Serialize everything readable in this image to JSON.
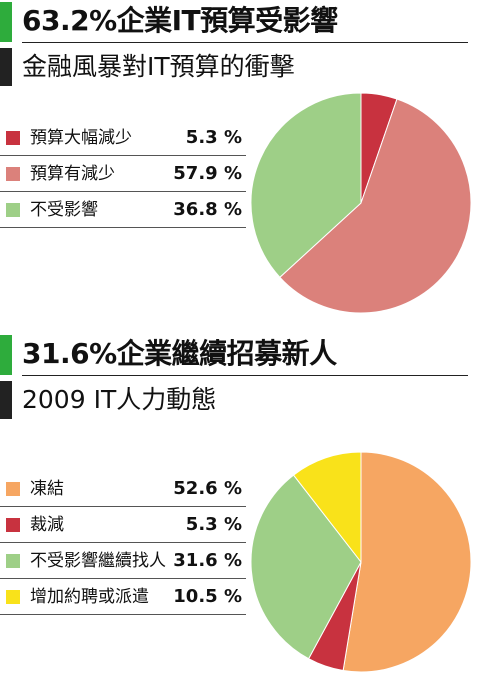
{
  "chart_data": [
    {
      "type": "pie",
      "title": "63.2%企業IT預算受影響",
      "subtitle": "金融風暴對IT預算的衝擊",
      "categories": [
        "預算大幅減少",
        "預算有減少",
        "不受影響"
      ],
      "values": [
        5.3,
        57.9,
        36.8
      ],
      "value_labels": [
        "5.3 %",
        "57.9 %",
        "36.8 %"
      ],
      "colors": [
        "#c8323f",
        "#db817b",
        "#9ecf87"
      ],
      "legend": "left"
    },
    {
      "type": "pie",
      "title": "31.6%企業繼續招募新人",
      "subtitle": "2009 IT人力動態",
      "categories": [
        "凍結",
        "裁減",
        "不受影響繼續找人",
        "增加約聘或派遣"
      ],
      "values": [
        52.6,
        5.3,
        31.6,
        10.5
      ],
      "value_labels": [
        "52.6 %",
        "5.3 %",
        "31.6 %",
        "10.5 %"
      ],
      "colors": [
        "#f6a662",
        "#c8323f",
        "#9ecf87",
        "#f9e21a"
      ],
      "legend": "left"
    }
  ],
  "colors": {
    "accent_bar": "#2eac3c",
    "sub_bar": "#222222"
  }
}
